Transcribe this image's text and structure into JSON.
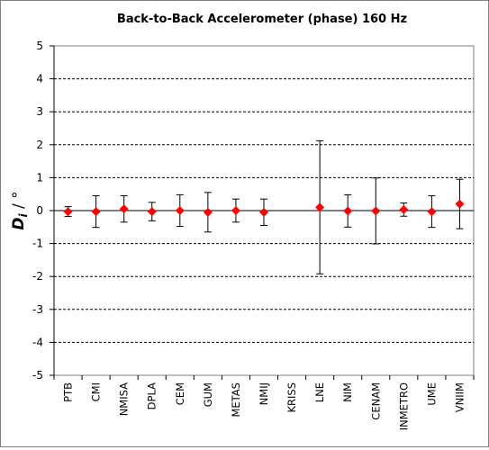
{
  "chart_data": {
    "type": "scatter",
    "title": "Back-to-Back Accelerometer  (phase)   160 Hz",
    "ylabel_main": "D",
    "ylabel_sub": "i",
    "ylabel_unit": " / °",
    "ylim": [
      -5,
      5
    ],
    "yticks": [
      5,
      4,
      3,
      2,
      1,
      0,
      -1,
      -2,
      -3,
      -4,
      -5
    ],
    "ytick_labels": [
      "5",
      "4",
      "3",
      "2",
      "1",
      "0",
      "-1",
      "-2",
      "-3",
      "-4",
      "-5"
    ],
    "grid": "horizontal dashed",
    "marker_color": "#ff0000",
    "categories": [
      "PTB",
      "CMI",
      "NMISA",
      "DPLA",
      "CEM",
      "GUM",
      "METAS",
      "NMIJ",
      "KRISS",
      "LNE",
      "NIM",
      "CENAM",
      "INMETRO",
      "UME",
      "VNIIM"
    ],
    "values": [
      -0.03,
      -0.03,
      0.05,
      -0.03,
      0.0,
      -0.05,
      0.0,
      -0.05,
      null,
      0.1,
      -0.01,
      -0.01,
      0.03,
      -0.03,
      0.2
    ],
    "error_plus": [
      0.15,
      0.48,
      0.4,
      0.28,
      0.48,
      0.6,
      0.35,
      0.4,
      null,
      2.02,
      0.49,
      1.0,
      0.2,
      0.48,
      0.75
    ],
    "error_minus": [
      0.15,
      0.48,
      0.4,
      0.28,
      0.48,
      0.6,
      0.35,
      0.4,
      null,
      2.02,
      0.49,
      1.0,
      0.2,
      0.48,
      0.75
    ]
  }
}
